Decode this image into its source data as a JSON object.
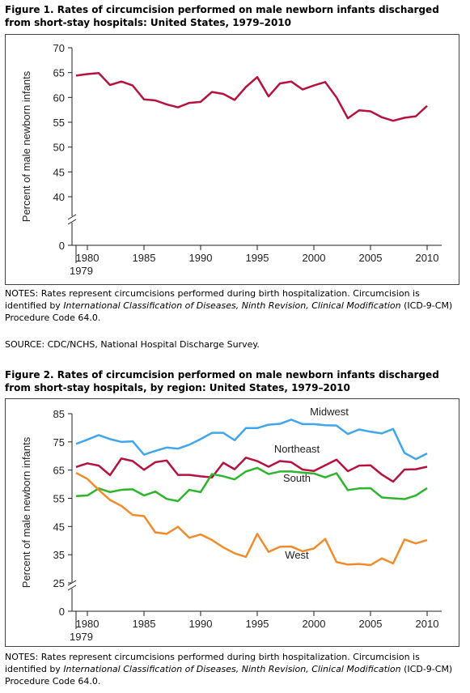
{
  "chart_data": [
    {
      "type": "line",
      "title": "Figure 1. Rates of circumcision performed on male newborn infants discharged from short-stay hospitals: United States, 1979–2010",
      "y_label": "Percent of male newborn infants",
      "y_axis_break": true,
      "x": [
        1979,
        1980,
        1981,
        1982,
        1983,
        1984,
        1985,
        1986,
        1987,
        1988,
        1989,
        1990,
        1991,
        1992,
        1993,
        1994,
        1995,
        1996,
        1997,
        1998,
        1999,
        2000,
        2001,
        2002,
        2003,
        2004,
        2005,
        2006,
        2007,
        2008,
        2009,
        2010
      ],
      "xlim": [
        1979,
        2010
      ],
      "xticks": [
        1979,
        1980,
        1985,
        1990,
        1995,
        2000,
        2005,
        2010
      ],
      "ylim": [
        0,
        70
      ],
      "yticks": [
        0,
        40,
        45,
        50,
        55,
        60,
        65,
        70
      ],
      "series": [
        {
          "name": null,
          "color": "#b5123e",
          "values": [
            64.4,
            64.7,
            64.9,
            62.5,
            63.2,
            62.4,
            59.6,
            59.4,
            58.6,
            58.0,
            58.9,
            59.1,
            61.1,
            60.7,
            59.5,
            62.1,
            64.1,
            60.2,
            62.8,
            63.2,
            61.6,
            62.4,
            63.1,
            60.0,
            55.8,
            57.4,
            57.2,
            56.0,
            55.3,
            55.9,
            56.2,
            58.3
          ]
        }
      ],
      "notes": [
        "NOTES: Rates represent circumcisions performed during birth hospitalization. Circumcision is identified by ",
        "International Classification of Diseases, Ninth Revision, Clinical Modification",
        " (ICD-9-CM) Procedure Code 64.0."
      ],
      "source": "SOURCE: CDC/NCHS, National Hospital Discharge Survey."
    },
    {
      "type": "line",
      "title": "Figure 2. Rates of circumcision performed on male newborn infants discharged from short-stay hospitals, by region: United States, 1979–2010",
      "y_label": "Percent of male newborn infants",
      "y_axis_break": true,
      "x": [
        1979,
        1980,
        1981,
        1982,
        1983,
        1984,
        1985,
        1986,
        1987,
        1988,
        1989,
        1990,
        1991,
        1992,
        1993,
        1994,
        1995,
        1996,
        1997,
        1998,
        1999,
        2000,
        2001,
        2002,
        2003,
        2004,
        2005,
        2006,
        2007,
        2008,
        2009,
        2010
      ],
      "xlim": [
        1979,
        2010
      ],
      "xticks": [
        1979,
        1980,
        1985,
        1990,
        1995,
        2000,
        2005,
        2010
      ],
      "ylim": [
        0,
        85
      ],
      "yticks": [
        0,
        25,
        35,
        45,
        55,
        65,
        75,
        85
      ],
      "series": [
        {
          "name": "Midwest",
          "color": "#3fa6ec",
          "values": [
            74.3,
            75.8,
            77.4,
            76.0,
            75.0,
            75.2,
            70.5,
            71.8,
            73.0,
            72.6,
            74.0,
            76.0,
            78.2,
            78.2,
            75.6,
            79.9,
            79.9,
            81.1,
            81.4,
            82.9,
            81.3,
            81.3,
            80.9,
            80.8,
            77.8,
            79.4,
            78.6,
            78.0,
            79.6,
            71.1,
            68.9,
            70.9
          ]
        },
        {
          "name": "Northeast",
          "color": "#b5123e",
          "values": [
            66.1,
            67.4,
            66.6,
            63.2,
            69.1,
            68.2,
            65.1,
            67.8,
            68.4,
            63.3,
            63.3,
            62.8,
            62.4,
            67.6,
            65.3,
            69.4,
            68.2,
            66.2,
            68.2,
            67.8,
            65.2,
            64.7,
            66.7,
            68.7,
            64.6,
            66.6,
            66.7,
            63.4,
            60.9,
            65.2,
            65.3,
            66.2
          ]
        },
        {
          "name": "South",
          "color": "#2db52d",
          "values": [
            55.8,
            56.0,
            58.5,
            57.2,
            58.0,
            58.2,
            56.0,
            57.4,
            54.8,
            54.0,
            58.0,
            57.2,
            63.6,
            62.8,
            61.7,
            64.5,
            65.8,
            63.6,
            64.5,
            64.5,
            64.1,
            63.8,
            62.4,
            63.9,
            57.9,
            58.5,
            58.6,
            55.3,
            55.0,
            54.7,
            56.0,
            58.6
          ]
        },
        {
          "name": "West",
          "color": "#f08c2c",
          "values": [
            64.0,
            61.9,
            58.0,
            54.4,
            52.3,
            49.1,
            48.7,
            42.9,
            42.4,
            44.9,
            41.0,
            42.2,
            40.2,
            37.6,
            35.5,
            34.2,
            42.4,
            36.0,
            37.8,
            37.9,
            36.2,
            37.2,
            40.6,
            32.4,
            31.5,
            31.7,
            31.3,
            33.7,
            31.9,
            40.4,
            39.0,
            40.2
          ]
        }
      ],
      "notes": [
        "NOTES: Rates represent circumcisions performed during birth hospitalization. Circumcision is identified by ",
        "International Classification of Diseases, Ninth Revision, Clinical Modification",
        " (ICD-9-CM) Procedure Code 64.0."
      ]
    }
  ]
}
